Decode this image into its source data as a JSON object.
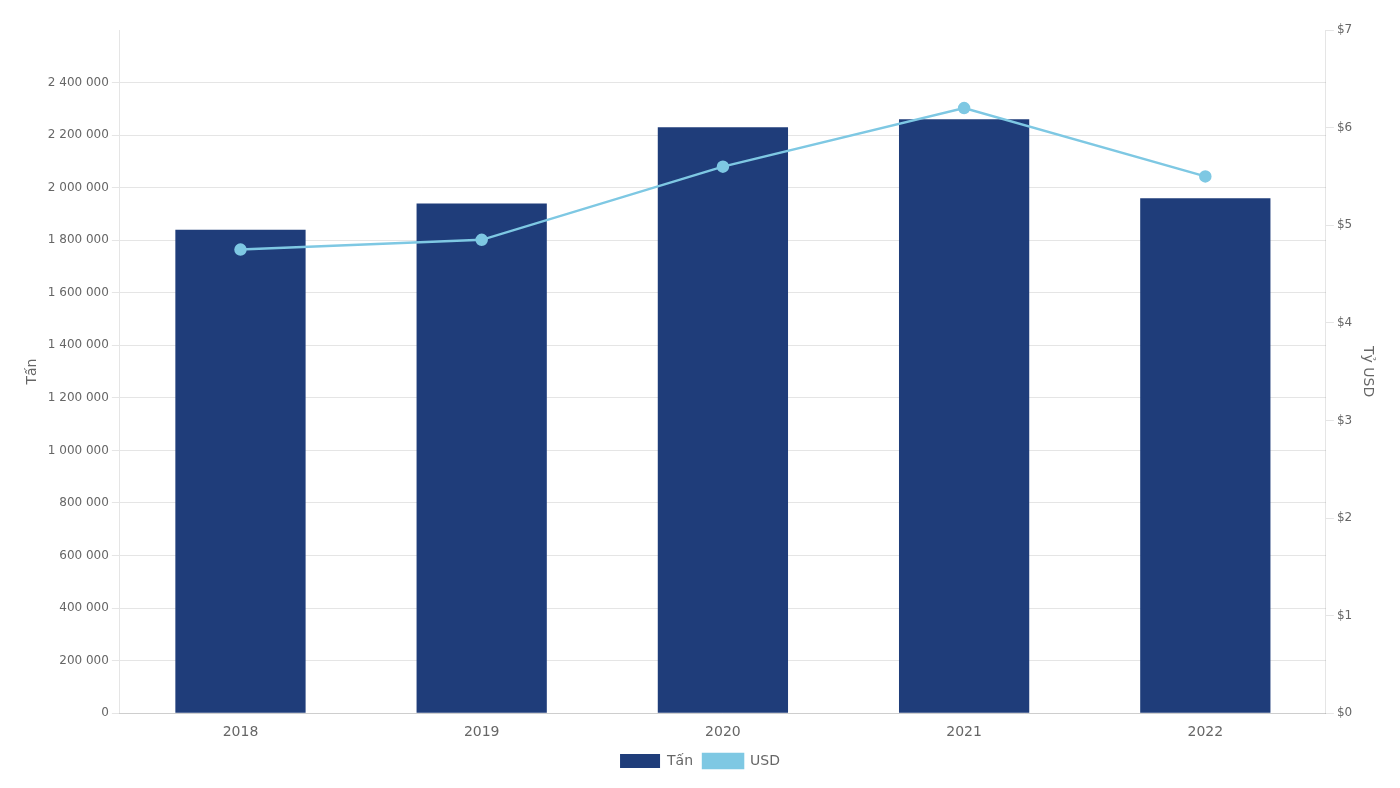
{
  "chart_data": {
    "type": "bar",
    "categories": [
      "2018",
      "2019",
      "2020",
      "2021",
      "2022"
    ],
    "series": [
      {
        "name": "Tấn",
        "type": "bar",
        "color": "#1f3d7a",
        "values": [
          1840000,
          1940000,
          2230000,
          2260000,
          1960000
        ]
      },
      {
        "name": "USD",
        "type": "line",
        "axis": "y2",
        "color": "#7ec8e3",
        "marker": "circle",
        "values": [
          4.75,
          4.85,
          5.6,
          6.2,
          5.5
        ]
      }
    ],
    "ylabel": "Tấn",
    "y2label": "Tỷ USD",
    "ylim": [
      0,
      2600000
    ],
    "yticks": [
      0,
      {
        "value": 200000,
        "label": "200 000"
      },
      {
        "value": 400000,
        "label": "400 000"
      },
      {
        "value": 600000,
        "label": "600 000"
      },
      {
        "value": 800000,
        "label": "800 000"
      },
      {
        "value": 1000000,
        "label": "1 000 000"
      },
      {
        "value": 1200000,
        "label": "1 200 000"
      },
      {
        "value": 1400000,
        "label": "1 400 000"
      },
      {
        "value": 1600000,
        "label": "1 600 000"
      },
      {
        "value": 1800000,
        "label": "1 800 000"
      },
      {
        "value": 2000000,
        "label": "2 000 000"
      },
      {
        "value": 2200000,
        "label": "2 200 000"
      },
      {
        "value": 2400000,
        "label": "2 400 000"
      }
    ],
    "y2lim": [
      0,
      7
    ],
    "y2ticks": [
      {
        "value": 0,
        "label": "$0"
      },
      {
        "value": 1,
        "label": "$1"
      },
      {
        "value": 2,
        "label": "$2"
      },
      {
        "value": 3,
        "label": "$3"
      },
      {
        "value": 4,
        "label": "$4"
      },
      {
        "value": 5,
        "label": "$5"
      },
      {
        "value": 6,
        "label": "$6"
      },
      {
        "value": 7,
        "label": "$7"
      }
    ],
    "grid": true,
    "legend": "bottom"
  }
}
